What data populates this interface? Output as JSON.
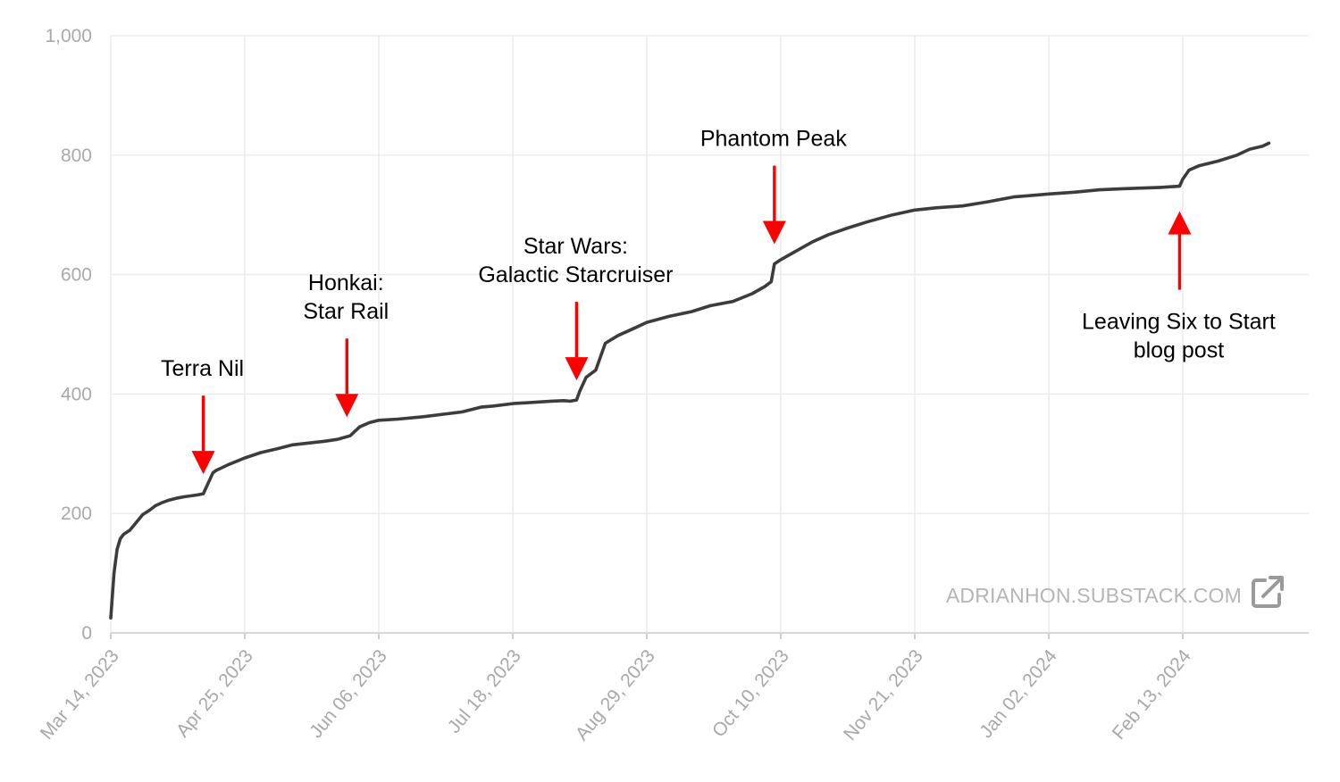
{
  "watermark": {
    "text": "ADRIANHON.SUBSTACK.COM",
    "icon": "external-link-icon"
  },
  "colors": {
    "line": "#3c3c3c",
    "arrow": "#ff0000",
    "grid": "#ececec",
    "tick_text": "#a9a9a9"
  },
  "chart_data": {
    "type": "line",
    "title": "",
    "xlabel": "",
    "ylabel": "",
    "ylim": [
      0,
      1000
    ],
    "yticks": [
      0,
      200,
      400,
      600,
      800,
      1000
    ],
    "ytick_labels": [
      "0",
      "200",
      "400",
      "600",
      "800",
      "1,000"
    ],
    "xlim": [
      "2023-03-14",
      "2024-03-11"
    ],
    "xticks": [
      "2023-03-14",
      "2023-04-25",
      "2023-06-06",
      "2023-07-18",
      "2023-08-29",
      "2023-10-10",
      "2023-11-21",
      "2024-01-02",
      "2024-02-13"
    ],
    "xtick_labels": [
      "Mar 14, 2023",
      "Apr 25, 2023",
      "Jun 06, 2023",
      "Jul 18, 2023",
      "Aug 29, 2023",
      "Oct 10, 2023",
      "Nov 21, 2023",
      "Jan 02, 2024",
      "Feb 13, 2024"
    ],
    "grid": true,
    "legend": "none",
    "series": [
      {
        "x": [
          "2023-03-14",
          "2023-03-15",
          "2023-03-16",
          "2023-03-17",
          "2023-03-18",
          "2023-03-20",
          "2023-03-22",
          "2023-03-24",
          "2023-03-26",
          "2023-03-28",
          "2023-03-30",
          "2023-04-01",
          "2023-04-04",
          "2023-04-06",
          "2023-04-10",
          "2023-04-12",
          "2023-04-15",
          "2023-04-16",
          "2023-04-20",
          "2023-04-25",
          "2023-04-30",
          "2023-05-05",
          "2023-05-10",
          "2023-05-15",
          "2023-05-20",
          "2023-05-24",
          "2023-05-28",
          "2023-05-31",
          "2023-06-03",
          "2023-06-06",
          "2023-06-12",
          "2023-06-20",
          "2023-06-26",
          "2023-07-02",
          "2023-07-08",
          "2023-07-12",
          "2023-07-18",
          "2023-07-24",
          "2023-07-30",
          "2023-08-03",
          "2023-08-05",
          "2023-08-07",
          "2023-08-08",
          "2023-08-10",
          "2023-08-13",
          "2023-08-16",
          "2023-08-20",
          "2023-08-25",
          "2023-08-29",
          "2023-09-05",
          "2023-09-12",
          "2023-09-18",
          "2023-09-25",
          "2023-10-01",
          "2023-10-05",
          "2023-10-07",
          "2023-10-08",
          "2023-10-10",
          "2023-10-15",
          "2023-10-20",
          "2023-10-25",
          "2023-10-31",
          "2023-11-06",
          "2023-11-14",
          "2023-11-21",
          "2023-11-28",
          "2023-12-06",
          "2023-12-14",
          "2023-12-22",
          "2024-01-02",
          "2024-01-10",
          "2024-01-18",
          "2024-01-26",
          "2024-02-01",
          "2024-02-06",
          "2024-02-12",
          "2024-02-13",
          "2024-02-15",
          "2024-02-18",
          "2024-02-24",
          "2024-03-01",
          "2024-03-05",
          "2024-03-09",
          "2024-03-11"
        ],
        "values": [
          25,
          100,
          140,
          158,
          165,
          172,
          185,
          198,
          205,
          213,
          218,
          222,
          226,
          228,
          231,
          233,
          268,
          272,
          282,
          293,
          302,
          308,
          315,
          318,
          321,
          324,
          330,
          345,
          352,
          356,
          358,
          362,
          366,
          370,
          378,
          380,
          384,
          386,
          388,
          389,
          388,
          390,
          405,
          428,
          440,
          485,
          498,
          510,
          520,
          530,
          538,
          548,
          555,
          568,
          580,
          588,
          618,
          625,
          640,
          655,
          667,
          678,
          688,
          700,
          708,
          712,
          715,
          722,
          730,
          735,
          738,
          742,
          744,
          745,
          746,
          748,
          760,
          775,
          782,
          790,
          800,
          810,
          815,
          820
        ]
      }
    ],
    "annotations": [
      {
        "lines": [
          "Terra Nil"
        ],
        "x": "2023-04-12",
        "arrow": "down"
      },
      {
        "lines": [
          "Honkai:",
          "Star Rail"
        ],
        "x": "2023-05-27",
        "arrow": "down"
      },
      {
        "lines": [
          "Star Wars:",
          "Galactic Starcruiser"
        ],
        "x": "2023-08-07",
        "arrow": "down"
      },
      {
        "lines": [
          "Phantom Peak"
        ],
        "x": "2023-10-08",
        "arrow": "down"
      },
      {
        "lines": [
          "Leaving Six to Start",
          "blog post"
        ],
        "x": "2024-02-12",
        "arrow": "up"
      }
    ]
  }
}
